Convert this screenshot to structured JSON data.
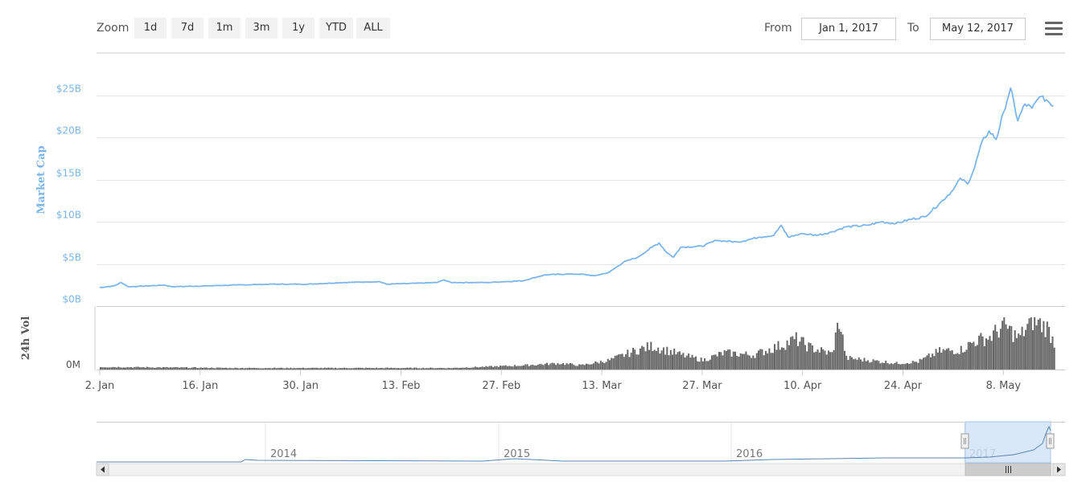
{
  "toolbar": {
    "zoom_label": "Zoom",
    "zoom_buttons": [
      "1d",
      "7d",
      "1m",
      "3m",
      "1y",
      "YTD",
      "ALL"
    ],
    "from_label": "From",
    "from_value": "Jan 1, 2017",
    "to_label": "To",
    "to_value": "May 12, 2017",
    "menu_icon": "hamburger-menu-icon"
  },
  "colors": {
    "line": "#7cb5ec",
    "volume": "#666666",
    "navigator_fill": "#cfe2f7",
    "grid": "#e6e6e6"
  },
  "chart_data": {
    "type": "line",
    "ylabel": "Market Cap",
    "ylabel2": "24h Vol",
    "y_ticks": [
      "$0B",
      "$5B",
      "$10B",
      "$15B",
      "$20B",
      "$25B"
    ],
    "ylim": [
      0,
      25
    ],
    "y_unit": "billion USD",
    "vol_tick": "0M",
    "x_ticks": [
      "2. Jan",
      "16. Jan",
      "30. Jan",
      "13. Feb",
      "27. Feb",
      "13. Mar",
      "27. Mar",
      "10. Apr",
      "24. Apr",
      "8. May"
    ],
    "x_tick_days": [
      1,
      15,
      29,
      43,
      57,
      71,
      85,
      99,
      113,
      127
    ],
    "x_range_days": [
      1,
      131
    ],
    "series": [
      {
        "name": "Market Cap",
        "points_day_value": [
          [
            1,
            2.2
          ],
          [
            3,
            2.4
          ],
          [
            4,
            2.8
          ],
          [
            5,
            2.3
          ],
          [
            8,
            2.4
          ],
          [
            10,
            2.5
          ],
          [
            11,
            2.3
          ],
          [
            16,
            2.4
          ],
          [
            20,
            2.5
          ],
          [
            25,
            2.6
          ],
          [
            30,
            2.6
          ],
          [
            35,
            2.8
          ],
          [
            40,
            2.9
          ],
          [
            41,
            2.6
          ],
          [
            45,
            2.7
          ],
          [
            48,
            2.8
          ],
          [
            49,
            3.1
          ],
          [
            50,
            2.8
          ],
          [
            55,
            2.8
          ],
          [
            60,
            3.0
          ],
          [
            63,
            3.7
          ],
          [
            66,
            3.8
          ],
          [
            68,
            3.8
          ],
          [
            70,
            3.6
          ],
          [
            72,
            4.0
          ],
          [
            74,
            5.2
          ],
          [
            76,
            5.8
          ],
          [
            78,
            7.0
          ],
          [
            79,
            7.5
          ],
          [
            80,
            6.4
          ],
          [
            81,
            5.8
          ],
          [
            82,
            7.0
          ],
          [
            85,
            7.1
          ],
          [
            87,
            7.8
          ],
          [
            90,
            7.6
          ],
          [
            93,
            8.2
          ],
          [
            95,
            8.4
          ],
          [
            96,
            9.6
          ],
          [
            97,
            8.2
          ],
          [
            99,
            8.6
          ],
          [
            101,
            8.4
          ],
          [
            103,
            8.8
          ],
          [
            105,
            9.4
          ],
          [
            108,
            9.6
          ],
          [
            110,
            10.0
          ],
          [
            112,
            9.8
          ],
          [
            114,
            10.3
          ],
          [
            116,
            10.6
          ],
          [
            118,
            12.1
          ],
          [
            120,
            13.8
          ],
          [
            121,
            15.2
          ],
          [
            122,
            14.5
          ],
          [
            123,
            16.5
          ],
          [
            124,
            19.5
          ],
          [
            125,
            20.8
          ],
          [
            126,
            19.8
          ],
          [
            127,
            23.0
          ],
          [
            128,
            25.9
          ],
          [
            129,
            22.0
          ],
          [
            130,
            24.0
          ],
          [
            131,
            23.5
          ],
          [
            132,
            24.8
          ],
          [
            133,
            24.5
          ],
          [
            134,
            23.8
          ]
        ]
      },
      {
        "name": "24h Vol",
        "relative_volume_profile_day_value": [
          [
            1,
            0.05
          ],
          [
            10,
            0.04
          ],
          [
            20,
            0.03
          ],
          [
            30,
            0.03
          ],
          [
            40,
            0.03
          ],
          [
            50,
            0.03
          ],
          [
            60,
            0.08
          ],
          [
            65,
            0.12
          ],
          [
            68,
            0.08
          ],
          [
            72,
            0.18
          ],
          [
            76,
            0.38
          ],
          [
            78,
            0.45
          ],
          [
            82,
            0.28
          ],
          [
            85,
            0.18
          ],
          [
            88,
            0.32
          ],
          [
            92,
            0.28
          ],
          [
            95,
            0.42
          ],
          [
            98,
            0.58
          ],
          [
            100,
            0.42
          ],
          [
            103,
            0.3
          ],
          [
            104,
            0.95
          ],
          [
            105,
            0.22
          ],
          [
            108,
            0.18
          ],
          [
            112,
            0.12
          ],
          [
            115,
            0.15
          ],
          [
            118,
            0.35
          ],
          [
            121,
            0.38
          ],
          [
            123,
            0.55
          ],
          [
            125,
            0.62
          ],
          [
            127,
            0.85
          ],
          [
            129,
            0.6
          ],
          [
            131,
            0.95
          ],
          [
            133,
            0.8
          ],
          [
            134,
            0.52
          ]
        ]
      }
    ],
    "navigator": {
      "labels": [
        "2014",
        "2015",
        "2016",
        "2017"
      ]
    }
  }
}
